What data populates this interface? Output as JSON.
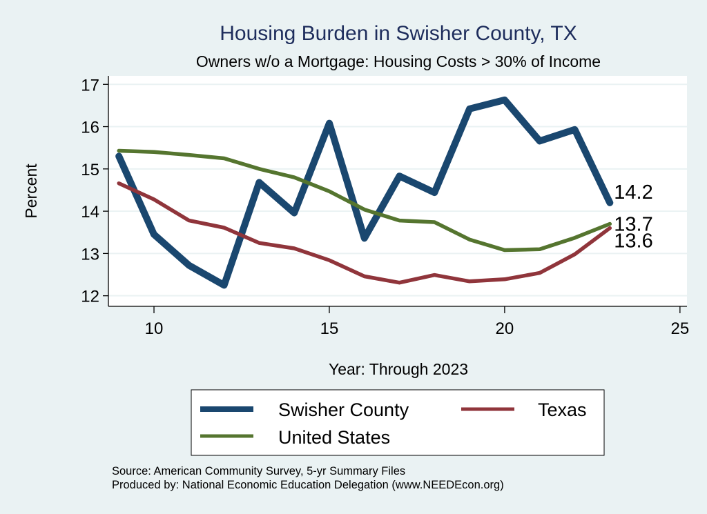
{
  "chart_data": {
    "type": "line",
    "title": "Housing Burden in Swisher County, TX",
    "subtitle": "Owners w/o a Mortgage: Housing Costs > 30% of Income",
    "xlabel": "Year: Through 2023",
    "ylabel": "Percent",
    "xlim": [
      8.7,
      25.2
    ],
    "ylim": [
      11.75,
      17.2
    ],
    "xticks": [
      10,
      15,
      20,
      25
    ],
    "yticks": [
      12,
      13,
      14,
      15,
      16,
      17
    ],
    "grid": "horizontal",
    "x": [
      9,
      10,
      11,
      12,
      13,
      14,
      15,
      16,
      17,
      18,
      19,
      20,
      21,
      22,
      23
    ],
    "series": [
      {
        "name": "Swisher County",
        "color": "#1a476f",
        "values": [
          15.3,
          13.45,
          12.72,
          12.25,
          14.68,
          13.96,
          16.08,
          13.36,
          14.83,
          14.44,
          16.42,
          16.63,
          15.66,
          15.93,
          14.2
        ],
        "end_label": "14.2"
      },
      {
        "name": "Texas",
        "color": "#90353b",
        "values": [
          14.66,
          14.28,
          13.78,
          13.61,
          13.25,
          13.12,
          12.84,
          12.46,
          12.31,
          12.49,
          12.34,
          12.39,
          12.54,
          12.98,
          13.6
        ],
        "end_label": "13.6"
      },
      {
        "name": "United States",
        "color": "#55752f",
        "values": [
          15.43,
          15.4,
          15.33,
          15.25,
          15.0,
          14.8,
          14.47,
          14.04,
          13.78,
          13.74,
          13.33,
          13.08,
          13.1,
          13.37,
          13.7
        ],
        "end_label": "13.7"
      }
    ],
    "legend": {
      "position": "bottom",
      "entries": [
        "Swisher County",
        "Texas",
        "United States"
      ]
    },
    "notes": [
      "Source: American Community Survey, 5-yr Summary Files",
      "Produced by: National Economic Education Delegation (www.NEEDEcon.org)"
    ]
  },
  "colors": {
    "background": "#eaf2f3",
    "plot_background": "#ffffff",
    "grid": "#eaf2f3",
    "title": "#1e2d5c"
  }
}
